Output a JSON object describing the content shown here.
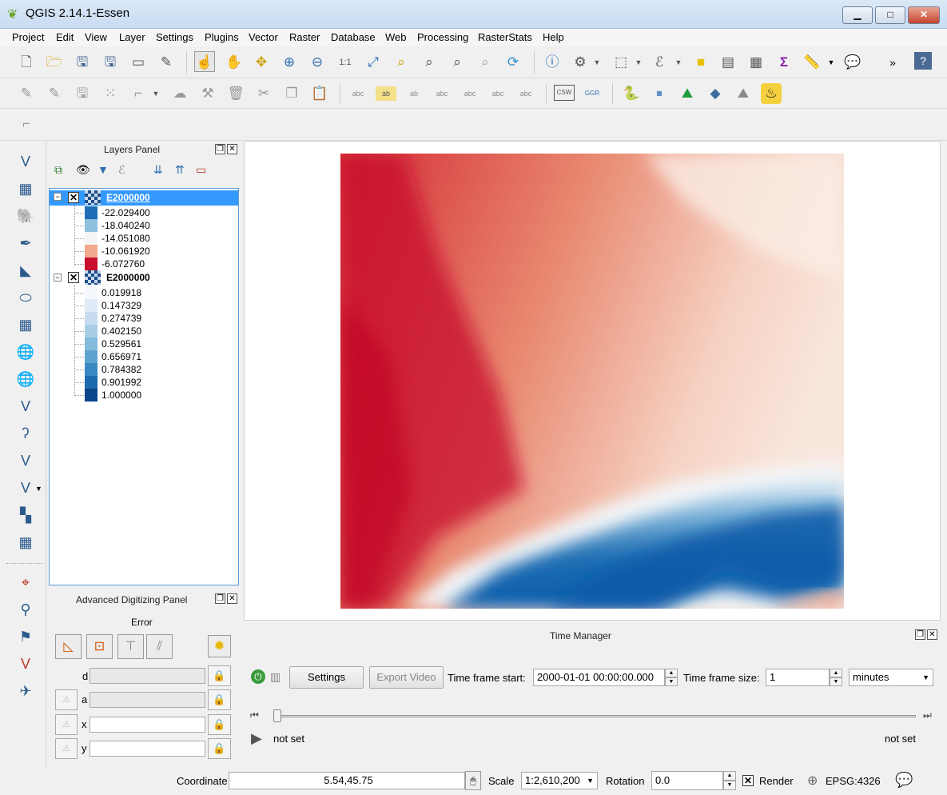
{
  "window": {
    "title": "QGIS 2.14.1-Essen",
    "min": "▁",
    "max": "□",
    "close": "✕"
  },
  "menu": [
    "Project",
    "Edit",
    "View",
    "Layer",
    "Settings",
    "Plugins",
    "Vector",
    "Raster",
    "Database",
    "Web",
    "Processing",
    "RasterStats",
    "Help"
  ],
  "layers_panel": {
    "title": "Layers Panel",
    "layers": [
      {
        "name": "E2000000",
        "selected": true,
        "legend": [
          {
            "label": "-22.029400",
            "color": "#1f6eb5"
          },
          {
            "label": "-18.040240",
            "color": "#8fc0de"
          },
          {
            "label": "-14.051080",
            "color": "#f5f5f5"
          },
          {
            "label": "-10.061920",
            "color": "#f2a98f"
          },
          {
            "label": "-6.072760",
            "color": "#c8102e"
          }
        ]
      },
      {
        "name": "E2000000",
        "selected": false,
        "legend": [
          {
            "label": "0.019918",
            "color": "#f4f8fd"
          },
          {
            "label": "0.147329",
            "color": "#deebf7"
          },
          {
            "label": "0.274739",
            "color": "#c8dcef"
          },
          {
            "label": "0.402150",
            "color": "#a9cde5"
          },
          {
            "label": "0.529561",
            "color": "#82bbdb"
          },
          {
            "label": "0.656971",
            "color": "#5ea3cf"
          },
          {
            "label": "0.784382",
            "color": "#3a88c1"
          },
          {
            "label": "0.901992",
            "color": "#1d6aae"
          },
          {
            "label": "1.000000",
            "color": "#0a4589"
          }
        ]
      }
    ]
  },
  "adv_panel": {
    "title": "Advanced Digitizing Panel",
    "error": "Error",
    "fields": [
      {
        "label": "d"
      },
      {
        "label": "a"
      },
      {
        "label": "x"
      },
      {
        "label": "y"
      }
    ]
  },
  "time_manager": {
    "title": "Time Manager",
    "settings": "Settings",
    "export_video": "Export Video",
    "start_label": "Time frame start:",
    "start_value": "2000-01-01 00:00:00.000",
    "size_label": "Time frame size:",
    "size_value": "1",
    "unit": "minutes",
    "left_status": "not set",
    "right_status": "not set",
    "slider_position": 0
  },
  "status": {
    "coordinate_label": "Coordinate",
    "coordinate_value": "5.54,45.75",
    "scale_label": "Scale",
    "scale_value": "1:2,610,200",
    "rotation_label": "Rotation",
    "rotation_value": "0.0",
    "render_label": "Render",
    "crs": "EPSG:4326"
  },
  "colors": {
    "accent": "#3399ff",
    "selection": "#3399ff",
    "red_max": "#c8102e",
    "blue_max": "#0a5aa8"
  }
}
